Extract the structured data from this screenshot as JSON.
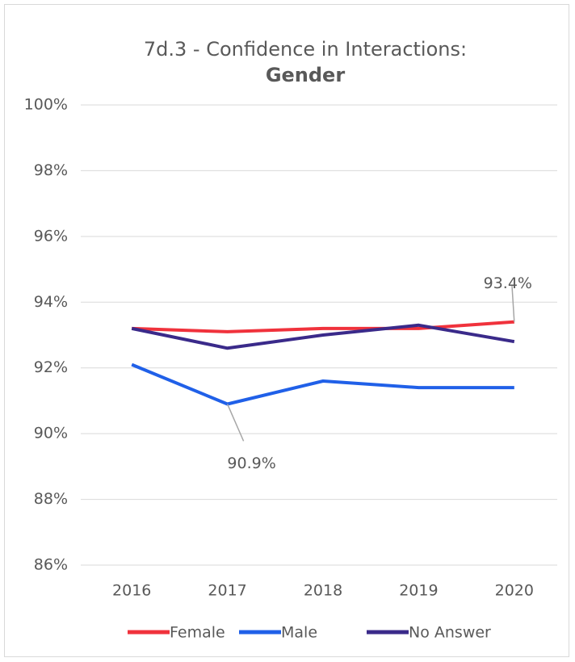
{
  "chart_data": {
    "type": "line",
    "title": "7d.3 - Confidence in Interactions:",
    "subtitle": "Gender",
    "categories": [
      "2016",
      "2017",
      "2018",
      "2019",
      "2020"
    ],
    "series": [
      {
        "name": "Female",
        "color": "#f0323c",
        "values": [
          93.2,
          93.1,
          93.2,
          93.2,
          93.4
        ],
        "value_labels": [
          null,
          null,
          null,
          null,
          "93.4%"
        ]
      },
      {
        "name": "Male",
        "color": "#2060e8",
        "values": [
          92.1,
          90.9,
          91.6,
          91.4,
          91.4
        ],
        "value_labels": [
          null,
          "90.9%",
          null,
          null,
          null
        ]
      },
      {
        "name": "No Answer",
        "color": "#3a2a8a",
        "values": [
          93.2,
          92.6,
          93.0,
          93.3,
          92.8
        ]
      }
    ],
    "ylim": [
      86,
      100
    ],
    "yticks": [
      {
        "value": 86,
        "label": "86%"
      },
      {
        "value": 88,
        "label": "88%"
      },
      {
        "value": 90,
        "label": "90%"
      },
      {
        "value": 92,
        "label": "92%"
      },
      {
        "value": 94,
        "label": "94%"
      },
      {
        "value": 96,
        "label": "96%"
      },
      {
        "value": 98,
        "label": "98%"
      },
      {
        "value": 100,
        "label": "100%"
      }
    ],
    "grid": true,
    "legend": "bottom"
  }
}
